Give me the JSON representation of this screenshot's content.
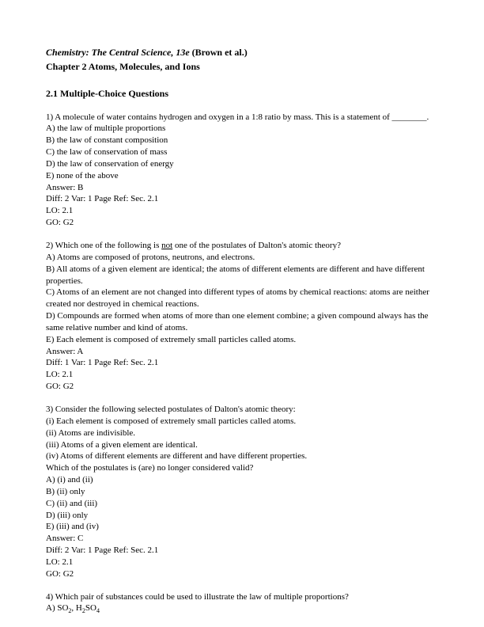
{
  "header": {
    "book": "Chemistry: The Central Science, 13e",
    "authors": "(Brown et al.)",
    "chapter": "Chapter 2   Atoms, Molecules, and Ions"
  },
  "section": "2.1   Multiple-Choice Questions",
  "q1": {
    "stem": "1) A molecule of water contains hydrogen and oxygen in a 1:8 ratio by mass. This is a statement of ________.",
    "a": "A) the law of multiple proportions",
    "b": "B) the law of constant composition",
    "c": "C) the law of conservation of mass",
    "d": "D) the law of conservation of energy",
    "e": "E) none of the above",
    "ans": "Answer:  B",
    "diff": "Diff: 2      Var: 1      Page Ref: Sec. 2.1",
    "lo": "LO:  2.1",
    "go": "GO:  G2"
  },
  "q2": {
    "stem1": "2) Which one of the following is ",
    "stem_not": "not",
    "stem2": " one of the postulates of Dalton's atomic theory?",
    "a": "A) Atoms are composed of protons, neutrons, and electrons.",
    "b": "B) All atoms of a given element are identical; the atoms of different elements are different and have different properties.",
    "c": "C) Atoms of an element are not changed into different types of atoms by chemical reactions: atoms are neither created nor destroyed in chemical reactions.",
    "d": "D) Compounds are formed when atoms of more than one element combine; a given compound always has the same relative number and kind of atoms.",
    "e": "E) Each element is composed of extremely small particles called atoms.",
    "ans": "Answer:  A",
    "diff": "Diff: 1      Var: 1      Page Ref: Sec. 2.1",
    "lo": "LO:  2.1",
    "go": "GO:  G2"
  },
  "q3": {
    "stem": "3) Consider the following selected postulates of Dalton's atomic theory:",
    "p1": " (i)   Each element is composed of extremely small particles called atoms.",
    "p2": " (ii)  Atoms are indivisible.",
    "p3": " (iii) Atoms of a given element are identical.",
    "p4": " (iv)  Atoms of different elements are different and have different properties.",
    "which": "Which of the postulates is (are) no longer considered valid?",
    "a": "A)  (i) and  (ii)",
    "b": "B)  (ii) only",
    "c": "C)  (ii) and  (iii)",
    "d": "D)  (iii) only",
    "e": "E)  (iii) and  (iv)",
    "ans": "Answer:  C",
    "diff": "Diff: 2      Var: 1      Page Ref: Sec. 2.1",
    "lo": "LO:  2.1",
    "go": "GO:  G2"
  },
  "q4": {
    "stem": "4) Which pair of substances could be used to illustrate the law of multiple proportions?",
    "a_pre": "A) SO",
    "a_sub1": "2",
    "a_mid": ", H",
    "a_sub2": "2",
    "a_post": "SO",
    "a_sub3": "4"
  }
}
